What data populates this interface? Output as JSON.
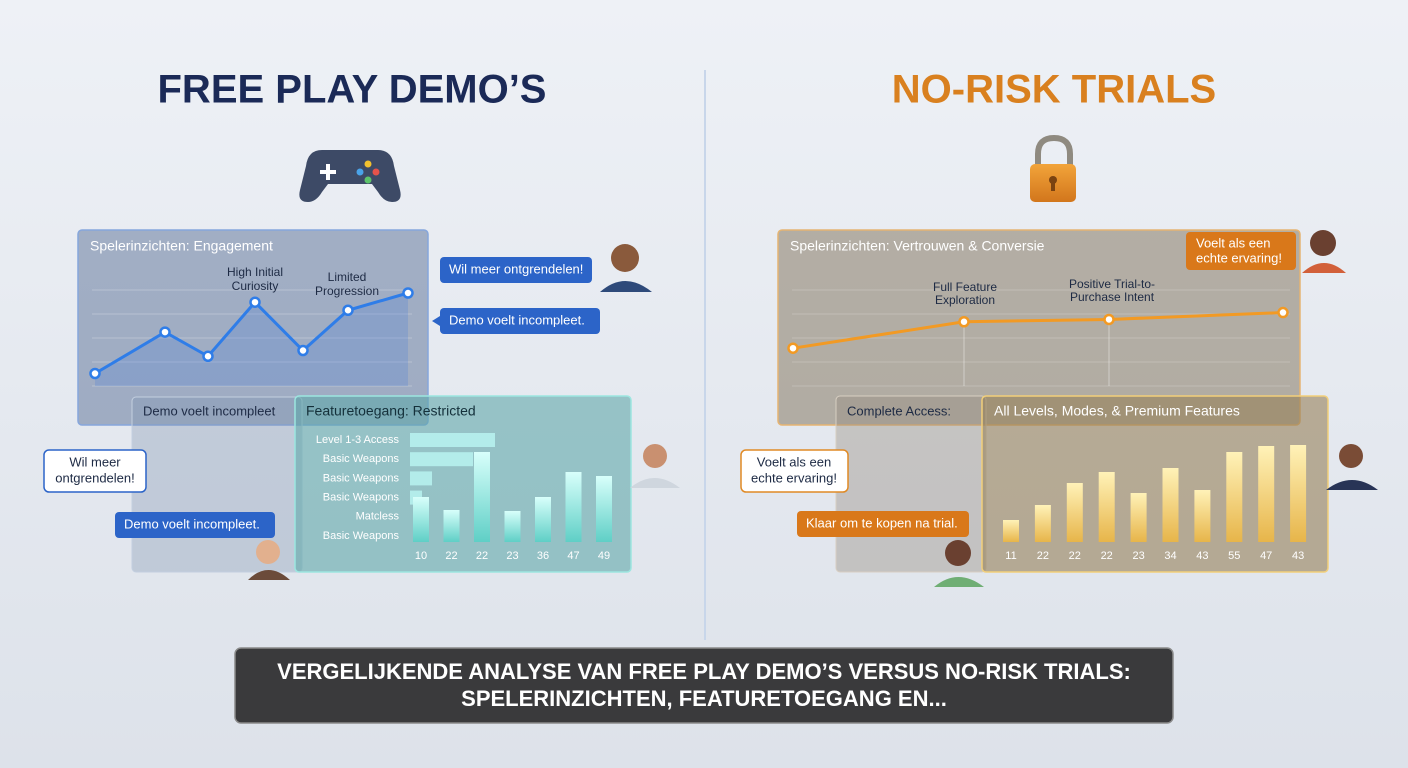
{
  "left": {
    "title": "FREE PLAY DEMO’S",
    "engagement": {
      "title": "Spelerinzichten: Engagement",
      "annotations": [
        [
          "High Initial",
          "Curiosity"
        ],
        [
          "Limited",
          "Progression"
        ]
      ],
      "values": [
        10,
        46,
        25,
        72,
        30,
        65,
        80
      ]
    },
    "bubbles": [
      "Wil meer ontgrendelen!",
      "Demo voelt incompleet.",
      "Demo voelt incompleet",
      [
        "Wil meer",
        "ontgrendelen!"
      ],
      "Demo voelt incompleet."
    ],
    "access": {
      "title": "Featuretoegang: Restricted",
      "rows": [
        "Level 1-3 Access",
        "Basic Weapons",
        "Basic Weapons",
        "Basic Weapons",
        "Matcless",
        "Basic Weapons"
      ],
      "row_values": [
        85,
        63,
        22,
        12,
        null,
        null
      ],
      "categories": [
        "10",
        "22",
        "22",
        "23",
        "36",
        "47",
        "49"
      ],
      "values": [
        45,
        32,
        90,
        31,
        45,
        70,
        66
      ]
    }
  },
  "right": {
    "title": "NO-RISK TRIALS",
    "engagement": {
      "title": "Spelerinzichten: Vertrouwen & Conversie",
      "annotations": [
        [
          "Full Feature",
          "Exploration"
        ],
        [
          "Positive Trial-to-",
          "Purchase Intent"
        ]
      ],
      "values": [
        32,
        55,
        57,
        63
      ]
    },
    "bubbles": [
      [
        "Voelt als een",
        "echte ervaring!"
      ],
      "Complete Access:",
      [
        "Voelt als een",
        "echte ervaring!"
      ],
      "Klaar om te kopen na trial."
    ],
    "access": {
      "title": "All Levels, Modes, & Premium Features",
      "categories": [
        "11",
        "22",
        "22",
        "22",
        "23",
        "34",
        "43",
        "55",
        "47",
        "43"
      ],
      "values": [
        22,
        37,
        59,
        70,
        49,
        74,
        52,
        90,
        96,
        97
      ]
    }
  },
  "footer": [
    "VERGELIJKENDE ANALYSE VAN FREE PLAY DEMO’S VERSUS NO-RISK TRIALS:",
    "SPELERINZICHTEN, FEATURETOEGANG EN..."
  ]
}
